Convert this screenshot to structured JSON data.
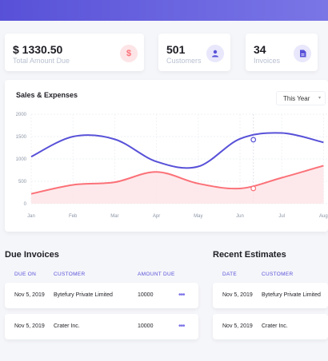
{
  "stats": {
    "amount": {
      "value": "$ 1330.50",
      "label": "Total Amount Due"
    },
    "customers": {
      "value": "501",
      "label": "Customers"
    },
    "invoices": {
      "value": "34",
      "label": "Invoices"
    }
  },
  "chart": {
    "title": "Sales & Expenses",
    "period": "This Year"
  },
  "chart_data": {
    "type": "line",
    "categories": [
      "Jan",
      "Feb",
      "Mar",
      "Apr",
      "May",
      "Jun",
      "Jul",
      "Aug"
    ],
    "ylim": [
      0,
      2000
    ],
    "yticks": [
      "0",
      "500",
      "1000",
      "1500",
      "2000"
    ],
    "series": [
      {
        "color": "#5851d8",
        "values": [
          1050,
          1500,
          1440,
          940,
          830,
          1450,
          1580,
          1370
        ]
      },
      {
        "color": "#fb7178",
        "values": [
          220,
          420,
          480,
          710,
          450,
          340,
          580,
          850
        ],
        "fill": "#fde4e6"
      }
    ],
    "markers": [
      {
        "series": 0,
        "x": 5.32,
        "y": 1430
      },
      {
        "series": 1,
        "x": 5.32,
        "y": 340
      }
    ]
  },
  "due_invoices": {
    "title": "Due Invoices",
    "headers": [
      "DUE ON",
      "CUSTOMER",
      "AMOUNT DUE"
    ],
    "rows": [
      {
        "date": "Nov 5, 2019",
        "customer": "Bytefury Private Limited",
        "amount": "10000"
      },
      {
        "date": "Nov 5, 2019",
        "customer": "Crater Inc.",
        "amount": "10000"
      }
    ],
    "more_glyph": "•••"
  },
  "recent_estimates": {
    "title": "Recent Estimates",
    "headers": [
      "DATE",
      "CUSTOMER"
    ],
    "rows": [
      {
        "date": "Nov 5, 2019",
        "customer": "Bytefury Private Limited"
      },
      {
        "date": "Nov 5, 2019",
        "customer": "Crater Inc."
      }
    ]
  },
  "icons": {
    "dollar": "$",
    "colors": {
      "dollar_bg": "#fde4e6",
      "dollar_fg": "#fb7178",
      "user_bg": "#e8e7fb",
      "user_fg": "#5851d8"
    }
  }
}
